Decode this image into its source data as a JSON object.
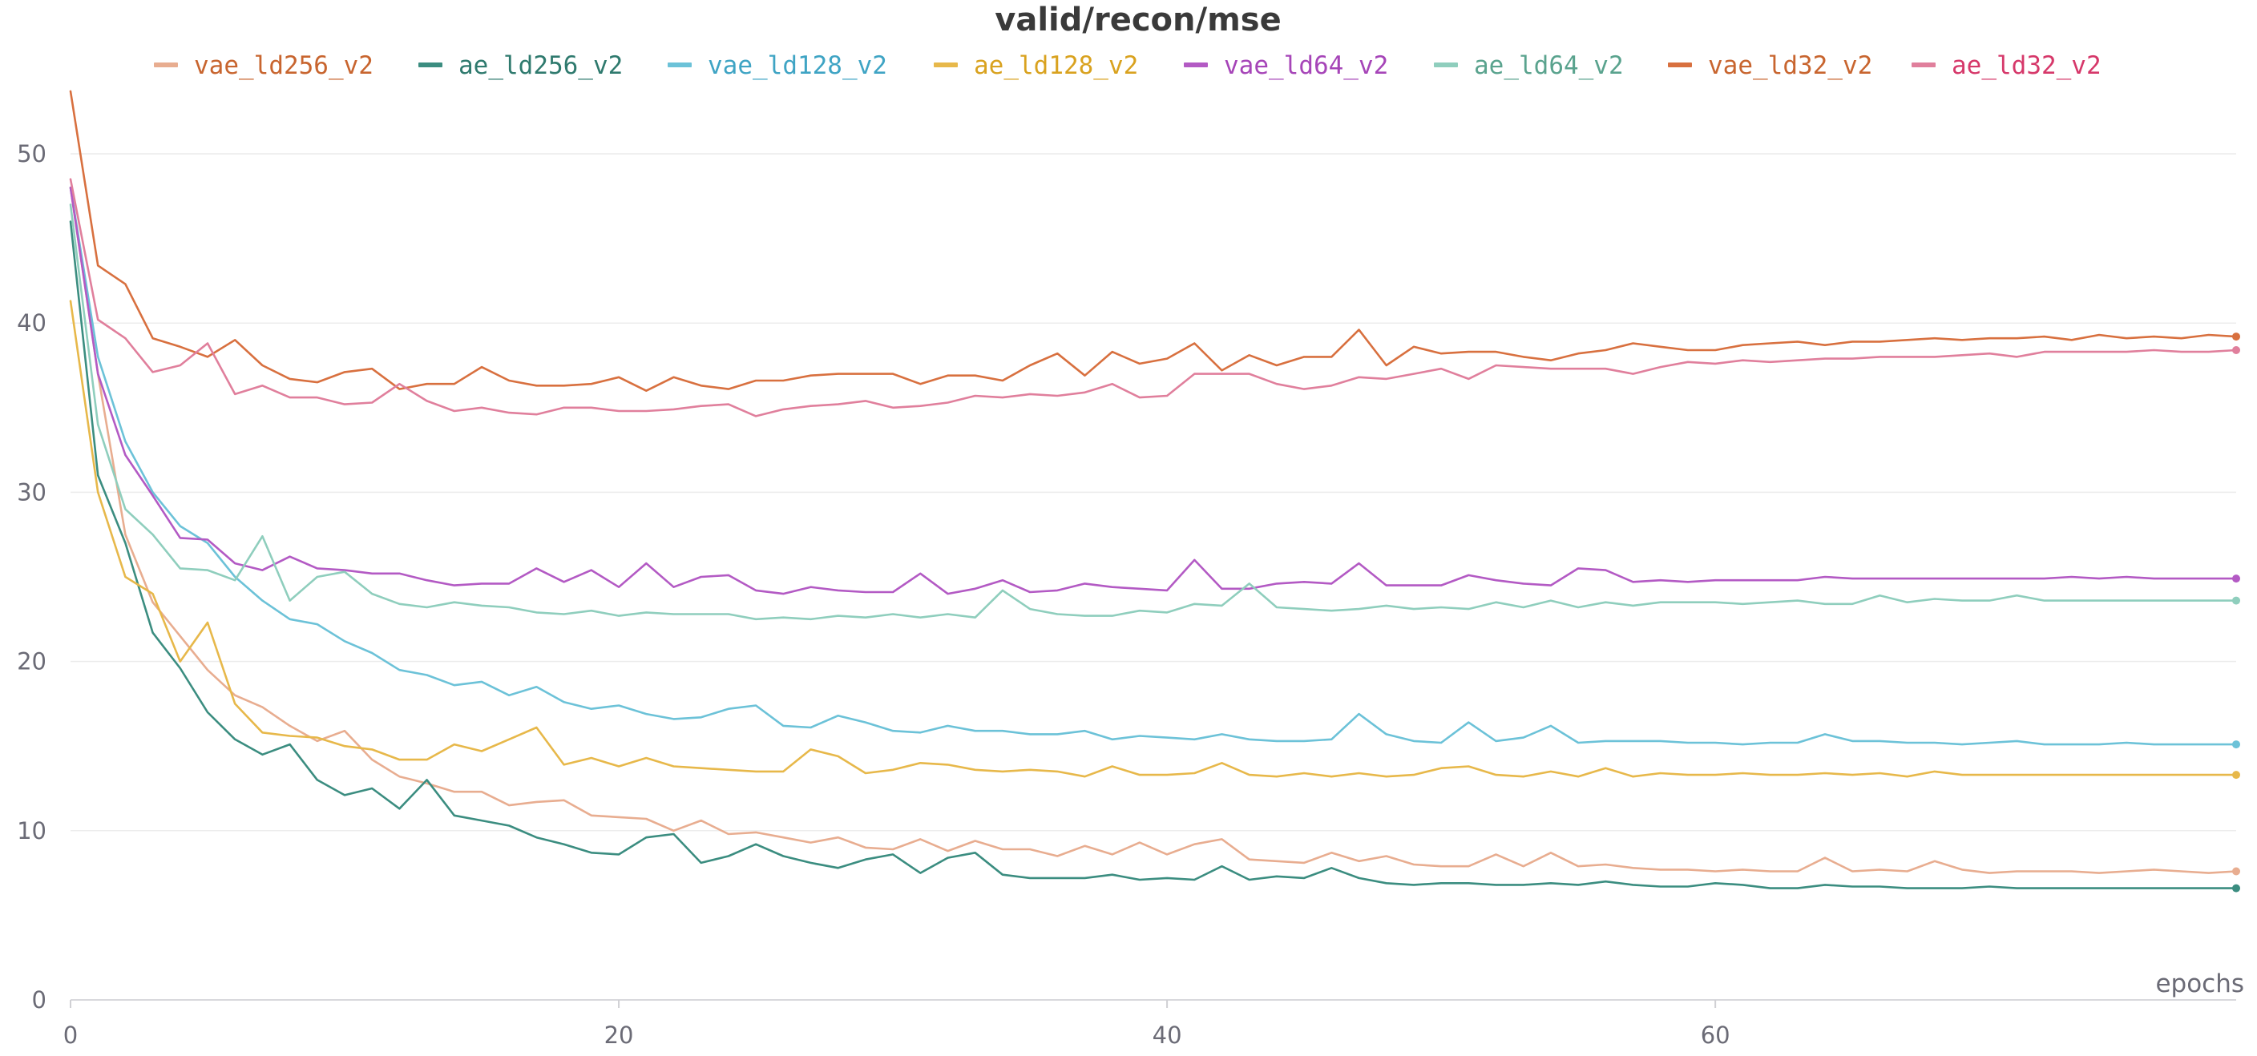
{
  "chart_data": {
    "type": "line",
    "title": "valid/recon/mse",
    "xlabel": "epochs",
    "ylabel": "",
    "xlim": [
      0,
      79
    ],
    "ylim": [
      0,
      55
    ],
    "x_ticks": [
      0,
      20,
      40,
      60
    ],
    "y_ticks": [
      0,
      10,
      20,
      30,
      40,
      50
    ],
    "grid": true,
    "legend_position": "top",
    "series": [
      {
        "name": "vae_ld256_v2",
        "color": "#e8ad90",
        "label_color": "#c8652f",
        "values": [
          48.0,
          37.0,
          27.5,
          23.5,
          21.5,
          19.5,
          18.0,
          17.3,
          16.2,
          15.3,
          15.9,
          14.2,
          13.2,
          12.8,
          12.3,
          12.3,
          11.5,
          11.7,
          11.8,
          10.9,
          10.8,
          10.7,
          10.0,
          10.6,
          9.8,
          9.9,
          9.6,
          9.3,
          9.6,
          9.0,
          8.9,
          9.5,
          8.8,
          9.4,
          8.9,
          8.9,
          8.5,
          9.1,
          8.6,
          9.3,
          8.6,
          9.2,
          9.5,
          8.3,
          8.2,
          8.1,
          8.7,
          8.2,
          8.5,
          8.0,
          7.9,
          7.9,
          8.6,
          7.9,
          8.7,
          7.9,
          8.0,
          7.8,
          7.7,
          7.7,
          7.6,
          7.7,
          7.6,
          7.6,
          8.4,
          7.6,
          7.7,
          7.6,
          8.2,
          7.7,
          7.5,
          7.6,
          7.6,
          7.6,
          7.5,
          7.6,
          7.7,
          7.6,
          7.5,
          7.6
        ]
      },
      {
        "name": "ae_ld256_v2",
        "color": "#3b8d80",
        "label_color": "#2f7a6e",
        "values": [
          46.0,
          31.0,
          27.0,
          21.7,
          19.6,
          17.0,
          15.4,
          14.5,
          15.1,
          13.0,
          12.1,
          12.5,
          11.3,
          13.0,
          10.9,
          10.6,
          10.3,
          9.6,
          9.2,
          8.7,
          8.6,
          9.6,
          9.8,
          8.1,
          8.5,
          9.2,
          8.5,
          8.1,
          7.8,
          8.3,
          8.6,
          7.5,
          8.4,
          8.7,
          7.4,
          7.2,
          7.2,
          7.2,
          7.4,
          7.1,
          7.2,
          7.1,
          7.9,
          7.1,
          7.3,
          7.2,
          7.8,
          7.2,
          6.9,
          6.8,
          6.9,
          6.9,
          6.8,
          6.8,
          6.9,
          6.8,
          7.0,
          6.8,
          6.7,
          6.7,
          6.9,
          6.8,
          6.6,
          6.6,
          6.8,
          6.7,
          6.7,
          6.6,
          6.6,
          6.6,
          6.7,
          6.6,
          6.6,
          6.6,
          6.6,
          6.6,
          6.6,
          6.6,
          6.6,
          6.6
        ]
      },
      {
        "name": "vae_ld128_v2",
        "color": "#6cc2d8",
        "label_color": "#3fa4c4",
        "values": [
          48.0,
          38.0,
          33.0,
          30.0,
          28.0,
          27.0,
          25.0,
          23.6,
          22.5,
          22.2,
          21.2,
          20.5,
          19.5,
          19.2,
          18.6,
          18.8,
          18.0,
          18.5,
          17.6,
          17.2,
          17.4,
          16.9,
          16.6,
          16.7,
          17.2,
          17.4,
          16.2,
          16.1,
          16.8,
          16.4,
          15.9,
          15.8,
          16.2,
          15.9,
          15.9,
          15.7,
          15.7,
          15.9,
          15.4,
          15.6,
          15.5,
          15.4,
          15.7,
          15.4,
          15.3,
          15.3,
          15.4,
          16.9,
          15.7,
          15.3,
          15.2,
          16.4,
          15.3,
          15.5,
          16.2,
          15.2,
          15.3,
          15.3,
          15.3,
          15.2,
          15.2,
          15.1,
          15.2,
          15.2,
          15.7,
          15.3,
          15.3,
          15.2,
          15.2,
          15.1,
          15.2,
          15.3,
          15.1,
          15.1,
          15.1,
          15.2,
          15.1,
          15.1,
          15.1,
          15.1
        ]
      },
      {
        "name": "ae_ld128_v2",
        "color": "#e7b84a",
        "label_color": "#d9a21f",
        "values": [
          41.3,
          30.0,
          25.0,
          24.0,
          20.0,
          22.3,
          17.5,
          15.8,
          15.6,
          15.5,
          15.0,
          14.8,
          14.2,
          14.2,
          15.1,
          14.7,
          15.4,
          16.1,
          13.9,
          14.3,
          13.8,
          14.3,
          13.8,
          13.7,
          13.6,
          13.5,
          13.5,
          14.8,
          14.4,
          13.4,
          13.6,
          14.0,
          13.9,
          13.6,
          13.5,
          13.6,
          13.5,
          13.2,
          13.8,
          13.3,
          13.3,
          13.4,
          14.0,
          13.3,
          13.2,
          13.4,
          13.2,
          13.4,
          13.2,
          13.3,
          13.7,
          13.8,
          13.3,
          13.2,
          13.5,
          13.2,
          13.7,
          13.2,
          13.4,
          13.3,
          13.3,
          13.4,
          13.3,
          13.3,
          13.4,
          13.3,
          13.4,
          13.2,
          13.5,
          13.3,
          13.3,
          13.3,
          13.3,
          13.3,
          13.3,
          13.3,
          13.3,
          13.3,
          13.3,
          13.3
        ]
      },
      {
        "name": "vae_ld64_v2",
        "color": "#b35ac4",
        "label_color": "#a645b8",
        "values": [
          48.0,
          37.0,
          32.2,
          29.8,
          27.3,
          27.2,
          25.8,
          25.4,
          26.2,
          25.5,
          25.4,
          25.2,
          25.2,
          24.8,
          24.5,
          24.6,
          24.6,
          25.5,
          24.7,
          25.4,
          24.4,
          25.8,
          24.4,
          25.0,
          25.1,
          24.2,
          24.0,
          24.4,
          24.2,
          24.1,
          24.1,
          25.2,
          24.0,
          24.3,
          24.8,
          24.1,
          24.2,
          24.6,
          24.4,
          24.3,
          24.2,
          26.0,
          24.3,
          24.3,
          24.6,
          24.7,
          24.6,
          25.8,
          24.5,
          24.5,
          24.5,
          25.1,
          24.8,
          24.6,
          24.5,
          25.5,
          25.4,
          24.7,
          24.8,
          24.7,
          24.8,
          24.8,
          24.8,
          24.8,
          25.0,
          24.9,
          24.9,
          24.9,
          24.9,
          24.9,
          24.9,
          24.9,
          24.9,
          25.0,
          24.9,
          25.0,
          24.9,
          24.9,
          24.9,
          24.9
        ]
      },
      {
        "name": "ae_ld64_v2",
        "color": "#8fcebd",
        "label_color": "#5aa38e",
        "values": [
          47.0,
          34.0,
          29.0,
          27.5,
          25.5,
          25.4,
          24.8,
          27.4,
          23.6,
          25.0,
          25.3,
          24.0,
          23.4,
          23.2,
          23.5,
          23.3,
          23.2,
          22.9,
          22.8,
          23.0,
          22.7,
          22.9,
          22.8,
          22.8,
          22.8,
          22.5,
          22.6,
          22.5,
          22.7,
          22.6,
          22.8,
          22.6,
          22.8,
          22.6,
          24.2,
          23.1,
          22.8,
          22.7,
          22.7,
          23.0,
          22.9,
          23.4,
          23.3,
          24.6,
          23.2,
          23.1,
          23.0,
          23.1,
          23.3,
          23.1,
          23.2,
          23.1,
          23.5,
          23.2,
          23.6,
          23.2,
          23.5,
          23.3,
          23.5,
          23.5,
          23.5,
          23.4,
          23.5,
          23.6,
          23.4,
          23.4,
          23.9,
          23.5,
          23.7,
          23.6,
          23.6,
          23.9,
          23.6,
          23.6,
          23.6,
          23.6,
          23.6,
          23.6,
          23.6,
          23.6
        ]
      },
      {
        "name": "vae_ld32_v2",
        "color": "#d8703f",
        "label_color": "#c8652f",
        "values": [
          53.7,
          43.4,
          42.3,
          39.1,
          38.6,
          38.0,
          39.0,
          37.5,
          36.7,
          36.5,
          37.1,
          37.3,
          36.1,
          36.4,
          36.4,
          37.4,
          36.6,
          36.3,
          36.3,
          36.4,
          36.8,
          36.0,
          36.8,
          36.3,
          36.1,
          36.6,
          36.6,
          36.9,
          37.0,
          37.0,
          37.0,
          36.4,
          36.9,
          36.9,
          36.6,
          37.5,
          38.2,
          36.9,
          38.3,
          37.6,
          37.9,
          38.8,
          37.2,
          38.1,
          37.5,
          38.0,
          38.0,
          39.6,
          37.5,
          38.6,
          38.2,
          38.3,
          38.3,
          38.0,
          37.8,
          38.2,
          38.4,
          38.8,
          38.6,
          38.4,
          38.4,
          38.7,
          38.8,
          38.9,
          38.7,
          38.9,
          38.9,
          39.0,
          39.1,
          39.0,
          39.1,
          39.1,
          39.2,
          39.0,
          39.3,
          39.1,
          39.2,
          39.1,
          39.3,
          39.2
        ]
      },
      {
        "name": "ae_ld32_v2",
        "color": "#e07f9c",
        "label_color": "#d6386a",
        "values": [
          48.5,
          40.2,
          39.1,
          37.1,
          37.5,
          38.8,
          35.8,
          36.3,
          35.6,
          35.6,
          35.2,
          35.3,
          36.4,
          35.4,
          34.8,
          35.0,
          34.7,
          34.6,
          35.0,
          35.0,
          34.8,
          34.8,
          34.9,
          35.1,
          35.2,
          34.5,
          34.9,
          35.1,
          35.2,
          35.4,
          35.0,
          35.1,
          35.3,
          35.7,
          35.6,
          35.8,
          35.7,
          35.9,
          36.4,
          35.6,
          35.7,
          37.0,
          37.0,
          37.0,
          36.4,
          36.1,
          36.3,
          36.8,
          36.7,
          37.0,
          37.3,
          36.7,
          37.5,
          37.4,
          37.3,
          37.3,
          37.3,
          37.0,
          37.4,
          37.7,
          37.6,
          37.8,
          37.7,
          37.8,
          37.9,
          37.9,
          38.0,
          38.0,
          38.0,
          38.1,
          38.2,
          38.0,
          38.3,
          38.3,
          38.3,
          38.3,
          38.4,
          38.3,
          38.3,
          38.4
        ]
      }
    ]
  }
}
